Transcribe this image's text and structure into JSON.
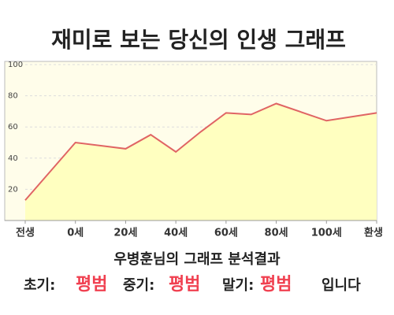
{
  "chart_data": {
    "type": "area",
    "title": "재미로 보는 당신의 인생 그래프",
    "x": [
      -20,
      0,
      20,
      30,
      40,
      50,
      60,
      70,
      80,
      100,
      120
    ],
    "values": [
      13,
      50,
      46,
      55,
      44,
      57,
      69,
      68,
      75,
      64,
      69
    ],
    "color": "#e06464",
    "fill": "#ffffc0",
    "xlim": [
      -20,
      120
    ],
    "xticks": [
      {
        "value": -20,
        "label": "전생"
      },
      {
        "value": 0,
        "label": "0세"
      },
      {
        "value": 20,
        "label": "20세"
      },
      {
        "value": 40,
        "label": "40세"
      },
      {
        "value": 60,
        "label": "60세"
      },
      {
        "value": 80,
        "label": "80세"
      },
      {
        "value": 100,
        "label": "100세"
      },
      {
        "value": 120,
        "label": "환생"
      }
    ],
    "ylim": [
      0,
      100
    ],
    "yticks": [
      20,
      40,
      60,
      80,
      100
    ],
    "grid": true
  },
  "analysis": {
    "heading": "우병훈님의 그래프 분석결과",
    "items": [
      {
        "label": "초기:",
        "value": "평범"
      },
      {
        "label": "중기:",
        "value": "평범"
      },
      {
        "label": "말기:",
        "value": "평범"
      }
    ],
    "suffix": "입니다"
  }
}
